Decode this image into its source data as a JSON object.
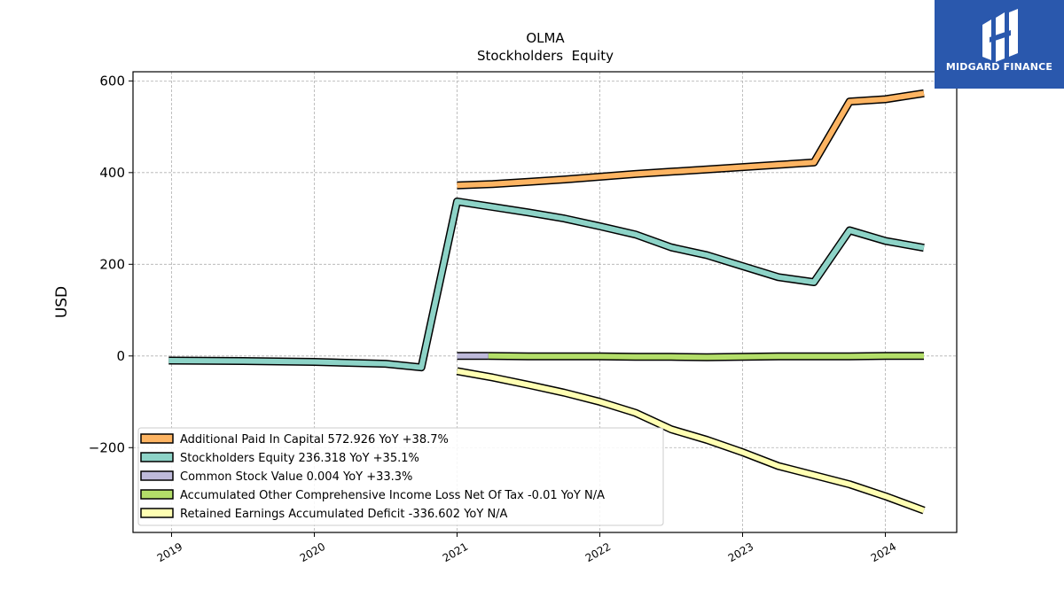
{
  "brand": {
    "name": "MIDGARD FINANCE",
    "logo_icon": "midgard-logo-icon",
    "background": "#2a58ad"
  },
  "chart_data": {
    "type": "line",
    "title": "OLMA",
    "subtitle": "Stockholders  Equity",
    "ylabel": "USD",
    "xlabel": "",
    "ylim": [
      -385,
      620
    ],
    "xlim": [
      2018.73,
      2024.5
    ],
    "yticks": [
      -200,
      0,
      200,
      400,
      600
    ],
    "ytick_labels": [
      "−200",
      "0",
      "200",
      "400",
      "600"
    ],
    "xticks": [
      2019,
      2020,
      2021,
      2022,
      2023,
      2024
    ],
    "xtick_labels": [
      "2019",
      "2020",
      "2021",
      "2022",
      "2023",
      "2024"
    ],
    "grid": true,
    "legend_position": "lower-left",
    "series": [
      {
        "name": "Additional Paid In Capital",
        "legend": "Additional Paid In Capital  572.926 YoY +38.7%",
        "color": "#fdb462",
        "x": [
          2021.0,
          2021.25,
          2021.5,
          2021.75,
          2022.0,
          2022.25,
          2022.5,
          2022.75,
          2023.0,
          2023.25,
          2023.5,
          2023.75,
          2024.0,
          2024.27
        ],
        "y": [
          372,
          375,
          380,
          385,
          391,
          397,
          402,
          407,
          412,
          417,
          422,
          555,
          560,
          573
        ]
      },
      {
        "name": "Stockholders Equity",
        "legend": "Stockholders Equity  236.318 YoY +35.1%",
        "color": "#8dd3c7",
        "x": [
          2018.98,
          2019.5,
          2020.0,
          2020.5,
          2020.75,
          2021.0,
          2021.25,
          2021.5,
          2021.75,
          2022.0,
          2022.25,
          2022.5,
          2022.75,
          2023.0,
          2023.25,
          2023.5,
          2023.75,
          2024.0,
          2024.27
        ],
        "y": [
          -10,
          -11,
          -13,
          -17,
          -25,
          337,
          325,
          313,
          300,
          283,
          265,
          237,
          220,
          196,
          172,
          161,
          274,
          251,
          236
        ]
      },
      {
        "name": "Common Stock Value",
        "legend": "Common Stock Value  0.004 YoY +33.3%",
        "color": "#bebada",
        "x": [
          2021.0,
          2021.22
        ],
        "y": [
          0,
          0
        ]
      },
      {
        "name": "Accumulated Other Comprehensive Income Loss Net Of Tax",
        "legend": "Accumulated Other Comprehensive Income Loss Net Of Tax  -0.01 YoY N/A",
        "color": "#b3de69",
        "x": [
          2021.22,
          2021.5,
          2022.0,
          2022.25,
          2022.5,
          2022.75,
          2023.0,
          2023.25,
          2023.5,
          2023.75,
          2024.0,
          2024.27
        ],
        "y": [
          0,
          -1,
          -1,
          -2,
          -2,
          -3,
          -2,
          -1,
          -1,
          -1,
          0,
          0
        ]
      },
      {
        "name": "Retained Earnings Accumulated Deficit",
        "legend": "Retained Earnings Accumulated Deficit  -336.602 YoY N/A",
        "color": "#ffffb3",
        "x": [
          2021.0,
          2021.25,
          2021.5,
          2021.75,
          2022.0,
          2022.25,
          2022.5,
          2022.75,
          2023.0,
          2023.25,
          2023.5,
          2023.75,
          2024.0,
          2024.27
        ],
        "y": [
          -33,
          -47,
          -63,
          -80,
          -100,
          -124,
          -160,
          -183,
          -210,
          -240,
          -260,
          -280,
          -306,
          -337
        ]
      }
    ]
  }
}
